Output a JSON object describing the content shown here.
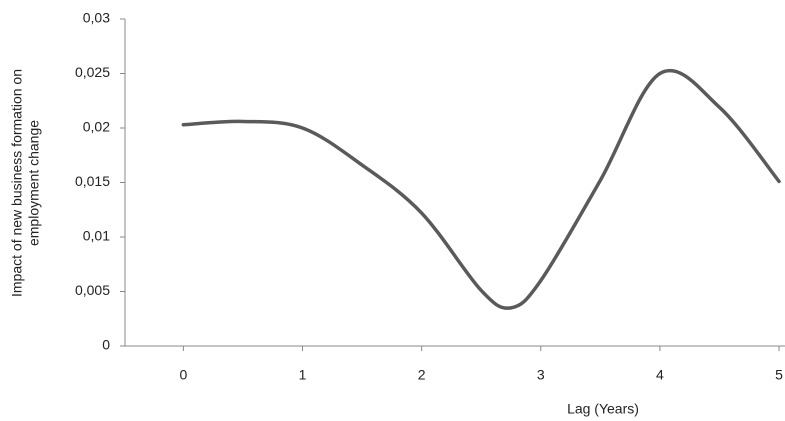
{
  "chart_data": {
    "type": "line",
    "ylabel": [
      "Impact of new business formation on",
      "employment change"
    ],
    "xlabel": "Lag (Years)",
    "x": [
      0,
      0.5,
      1,
      1.5,
      2,
      2.5,
      2.75,
      3,
      3.5,
      4,
      4.5,
      5
    ],
    "series": [
      {
        "name": "Impact",
        "color": "#5a5a5a",
        "values": [
          0.0203,
          0.0206,
          0.02,
          0.0166,
          0.0122,
          0.0051,
          0.0035,
          0.006,
          0.0152,
          0.025,
          0.0219,
          0.0151
        ]
      }
    ],
    "xlim": [
      -0.49,
      5.05
    ],
    "xticks": [
      0,
      1,
      2,
      3,
      4,
      5
    ],
    "ylim": [
      0,
      0.03
    ],
    "yticks": [
      0,
      {
        "value": 0.005,
        "label": "0,005"
      },
      {
        "value": 0.01,
        "label": "0,01"
      },
      {
        "value": 0.015,
        "label": "0,015"
      },
      {
        "value": 0.02,
        "label": "0,02"
      },
      {
        "value": 0.025,
        "label": "0,025"
      },
      {
        "value": 0.03,
        "label": "0,03"
      }
    ],
    "smooth": true
  }
}
